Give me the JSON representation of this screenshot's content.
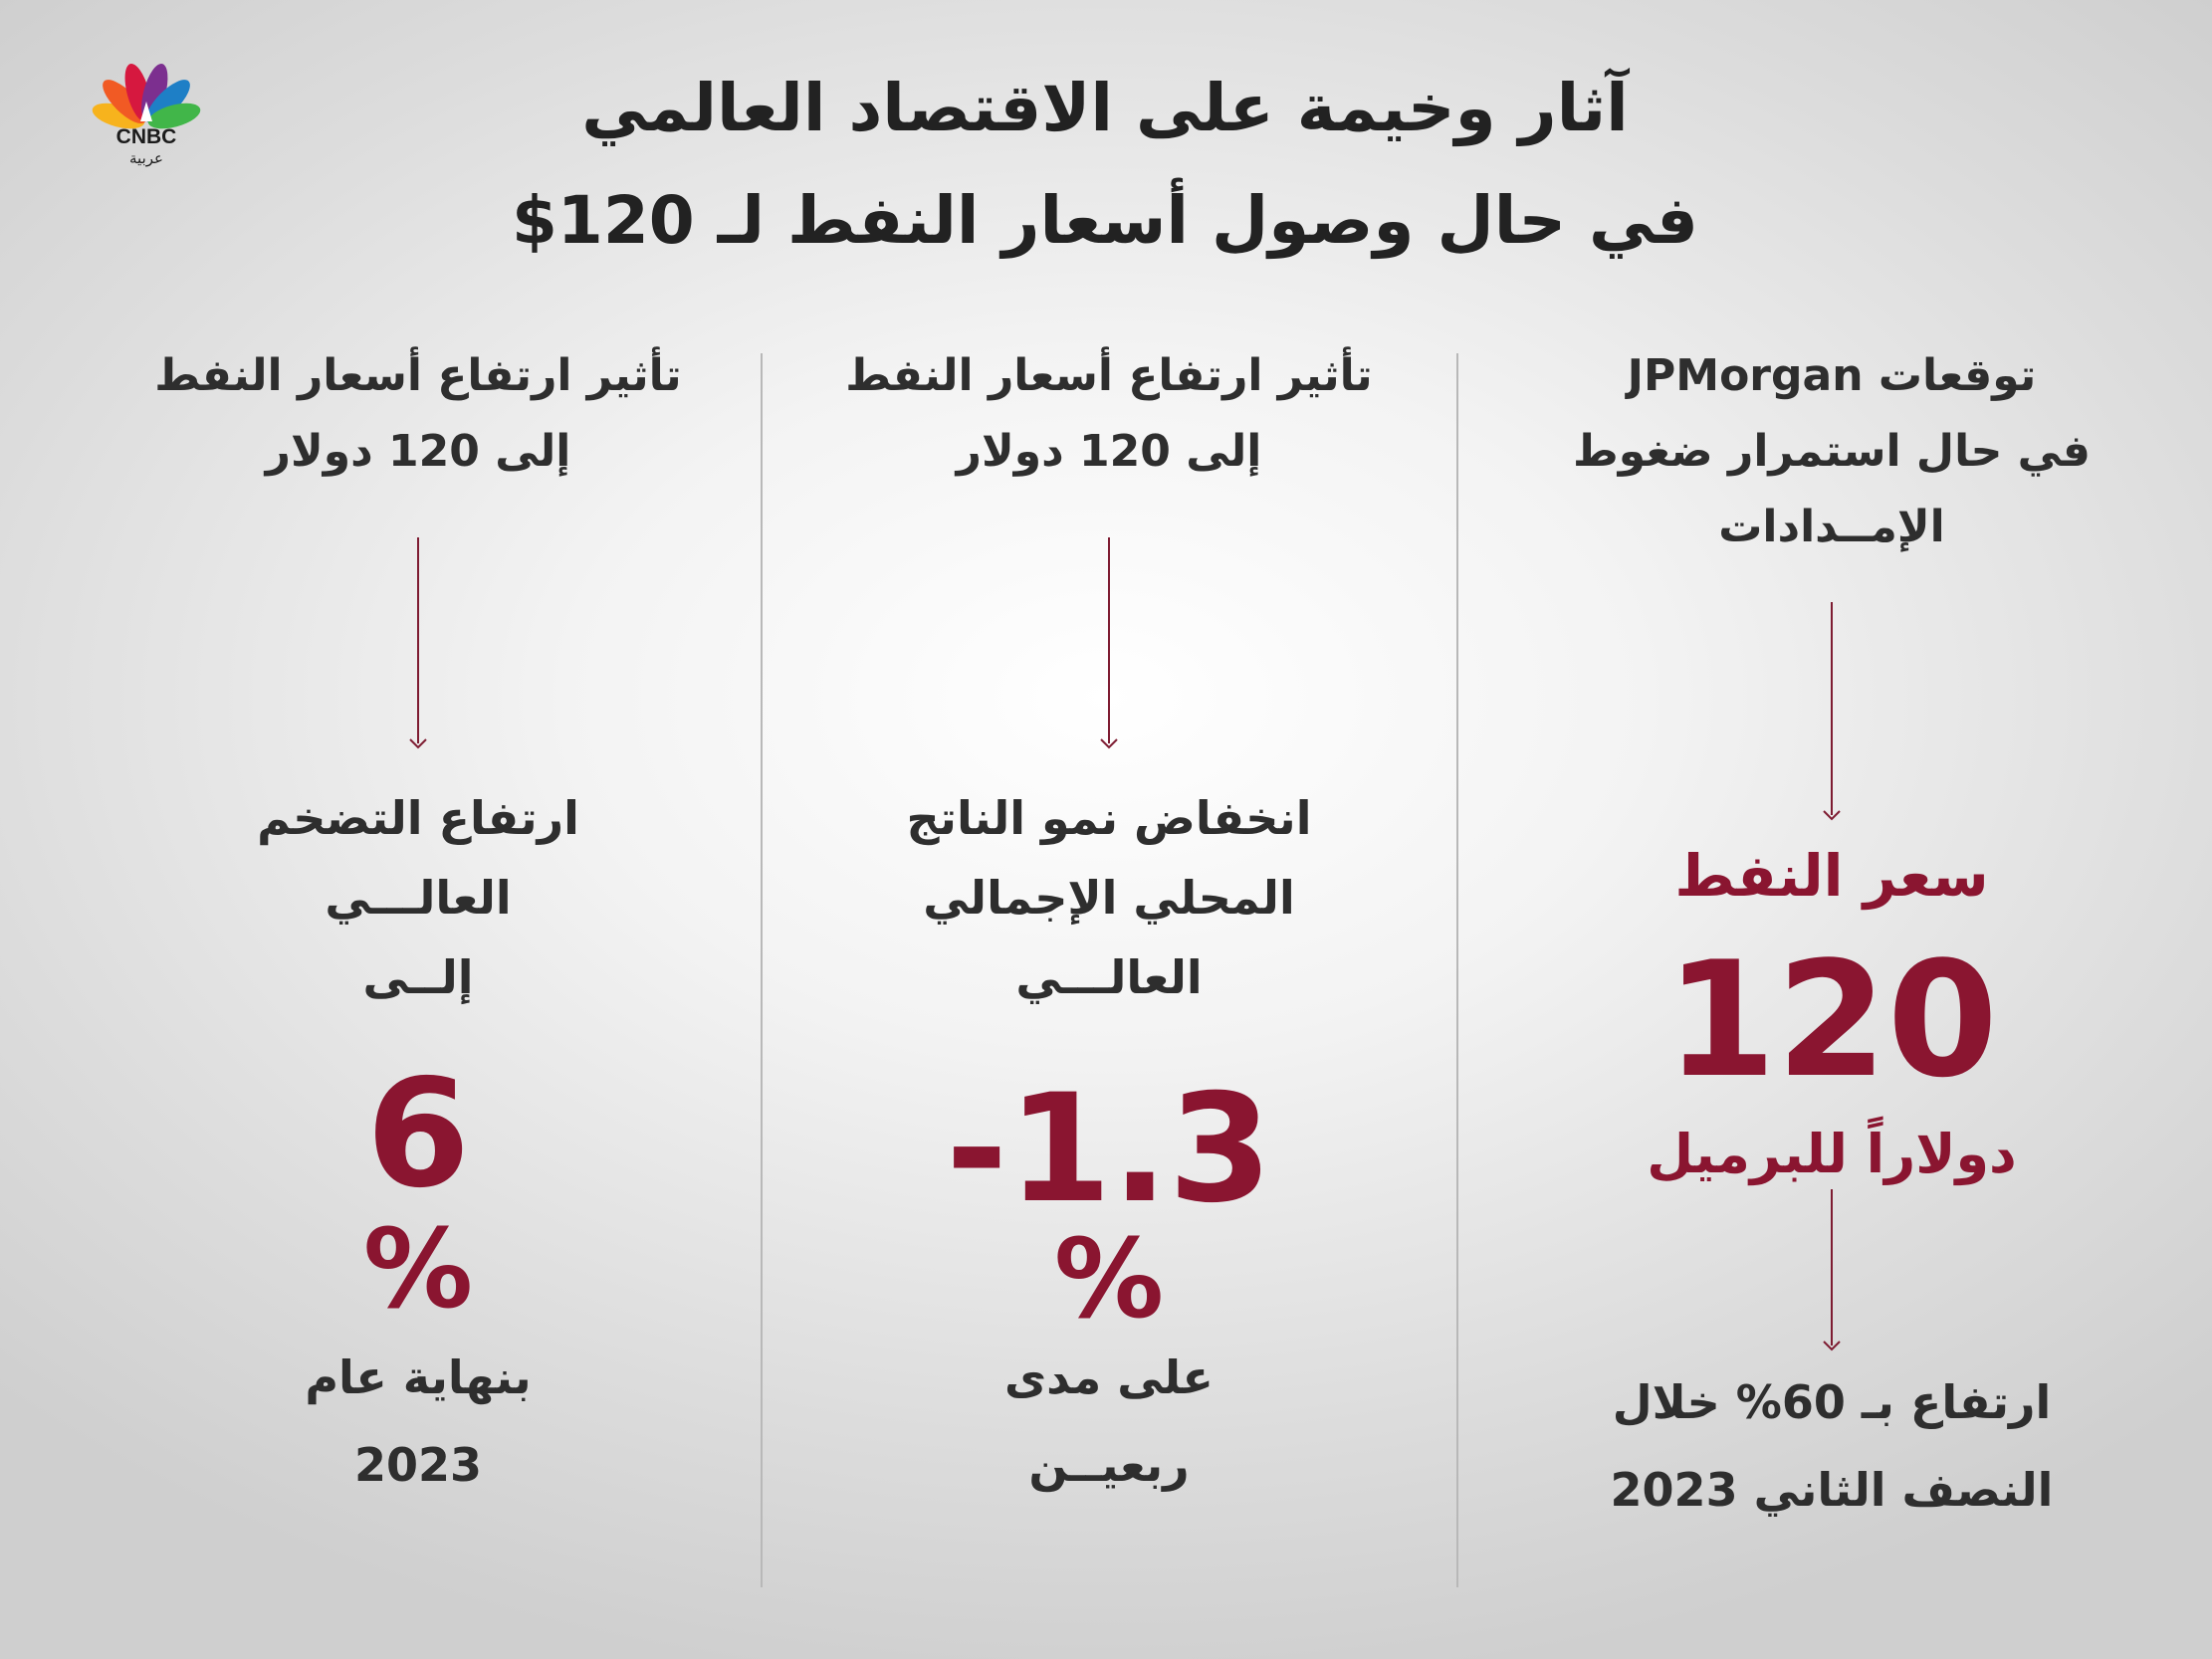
{
  "brand": {
    "logo_text": "CNBC",
    "logo_subtext": "عربية",
    "peacock_colors": [
      "#f7b31d",
      "#f15a24",
      "#d6183f",
      "#7c2f8f",
      "#1e7fc6",
      "#41b649"
    ]
  },
  "title": {
    "line1": "آثار وخيمة على الاقتصاد العالمي",
    "line2": "في حال وصول أسعار النفط لـ 120$"
  },
  "colors": {
    "accent": "#8a1530",
    "text": "#2e2e2e",
    "divider": "#b8b8b8"
  },
  "columns": {
    "right": {
      "heading": [
        "توقعات JPMorgan",
        "في حال استمرار ضغوط",
        "الإمــدادات"
      ],
      "label": "سعر النفط",
      "value": "120",
      "unit": "دولاراً للبرميل",
      "footer": [
        "ارتفاع بـ 60% خلال",
        "النصف الثاني 2023"
      ]
    },
    "middle": {
      "heading": [
        "تأثير ارتفاع أسعار النفط",
        "إلى 120 دولار"
      ],
      "effect": [
        "انخفاض نمو الناتج",
        "المحلي الإجمالي",
        "العالـــي"
      ],
      "value": "-1.3",
      "percent": "%",
      "footer": [
        "على مدى",
        "ربعيــن"
      ]
    },
    "left": {
      "heading": [
        "تأثير ارتفاع أسعار النفط",
        "إلى 120 دولار"
      ],
      "effect": [
        "ارتفاع التضخم",
        "العالـــي",
        "إلــى"
      ],
      "value": "6",
      "percent": "%",
      "footer": [
        "بنهاية عام",
        "2023"
      ]
    }
  }
}
